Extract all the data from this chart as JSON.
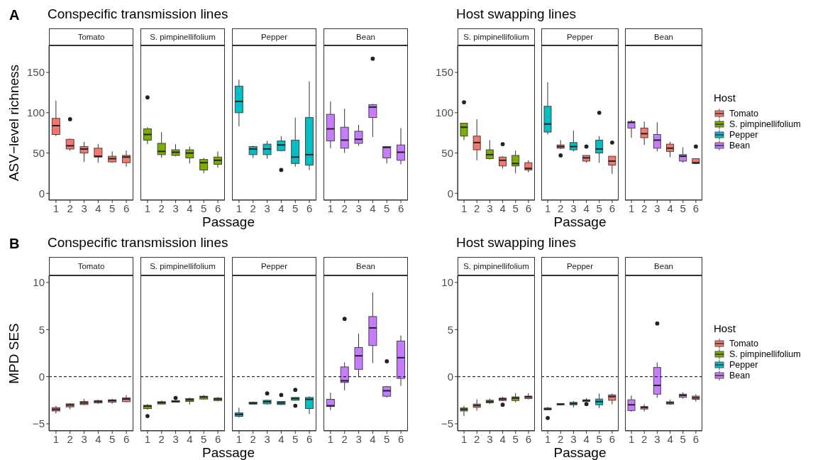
{
  "chart_data": [
    {
      "type": "box",
      "title": "Conspecific transmission lines",
      "annotations": [
        "A"
      ],
      "subtitle": "Tomato",
      "ylabel": "ASV−level richness",
      "xlabel": "Passage",
      "categories": [
        "1",
        "2",
        "3",
        "4",
        "5",
        "6"
      ],
      "ylim": [
        -8.5,
        183.5
      ],
      "yticks": [
        0,
        50,
        100,
        150
      ],
      "series": [
        {
          "color": "#f8766d",
          "boxes": [
            {
              "low": 71,
              "q1": 73,
              "median": 84,
              "q3": 93,
              "high": 115
            },
            {
              "low": 53,
              "q1": 55,
              "median": 59,
              "q3": 67,
              "high": 68,
              "outliers": [
                92
              ]
            },
            {
              "low": 39,
              "q1": 50,
              "median": 55,
              "q3": 58,
              "high": 64
            },
            {
              "low": 38,
              "q1": 45,
              "median": 46,
              "q3": 56,
              "high": 61
            },
            {
              "low": 38,
              "q1": 39,
              "median": 43,
              "q3": 46,
              "high": 52
            },
            {
              "low": 33,
              "q1": 38,
              "median": 45,
              "q3": 47,
              "high": 53
            }
          ]
        }
      ]
    },
    {
      "type": "box",
      "subtitle": "S. pimpinellifolium",
      "tick_labels": "x",
      "categories": [
        "1",
        "2",
        "3",
        "4",
        "5",
        "6"
      ],
      "ylim": [
        -8.5,
        183.5
      ],
      "yticks": [
        0,
        50,
        100,
        150
      ],
      "series": [
        {
          "color": "#7cae00",
          "boxes": [
            {
              "low": 61,
              "q1": 66,
              "median": 73,
              "q3": 80,
              "high": 82,
              "outliers": [
                119
              ]
            },
            {
              "low": 44,
              "q1": 48,
              "median": 52,
              "q3": 62,
              "high": 76
            },
            {
              "low": 46,
              "q1": 47,
              "median": 51,
              "q3": 54,
              "high": 61
            },
            {
              "low": 37,
              "q1": 44,
              "median": 50,
              "q3": 54,
              "high": 58
            },
            {
              "low": 25,
              "q1": 29,
              "median": 38,
              "q3": 42,
              "high": 44
            },
            {
              "low": 32,
              "q1": 36,
              "median": 41,
              "q3": 45,
              "high": 52
            }
          ]
        }
      ]
    },
    {
      "type": "box",
      "subtitle": "Pepper",
      "tick_labels": "x",
      "categories": [
        "1",
        "2",
        "3",
        "4",
        "5",
        "6"
      ],
      "ylim": [
        -8.5,
        183.5
      ],
      "yticks": [
        0,
        50,
        100,
        150
      ],
      "series": [
        {
          "color": "#00bfc4",
          "boxes": [
            {
              "low": 83,
              "q1": 100,
              "median": 114,
              "q3": 133,
              "high": 141
            },
            {
              "low": 44,
              "q1": 48,
              "median": 55,
              "q3": 58,
              "high": 59
            },
            {
              "low": 43,
              "q1": 48,
              "median": 55,
              "q3": 61,
              "high": 65
            },
            {
              "low": 52,
              "q1": 53,
              "median": 60,
              "q3": 65,
              "high": 71,
              "outliers": [
                29
              ]
            },
            {
              "low": 33,
              "q1": 37,
              "median": 45,
              "q3": 66,
              "high": 94
            },
            {
              "low": 29,
              "q1": 35,
              "median": 48,
              "q3": 94,
              "high": 139
            }
          ]
        }
      ]
    },
    {
      "type": "box",
      "subtitle": "Bean",
      "tick_labels": "x",
      "categories": [
        "1",
        "2",
        "3",
        "4",
        "5",
        "6"
      ],
      "ylim": [
        -8.5,
        183.5
      ],
      "yticks": [
        0,
        50,
        100,
        150
      ],
      "series": [
        {
          "color": "#c77cff",
          "boxes": [
            {
              "low": 56,
              "q1": 65,
              "median": 80,
              "q3": 98,
              "high": 114
            },
            {
              "low": 50,
              "q1": 56,
              "median": 66,
              "q3": 82,
              "high": 105
            },
            {
              "low": 59,
              "q1": 62,
              "median": 67,
              "q3": 77,
              "high": 85
            },
            {
              "low": 70,
              "q1": 94,
              "median": 107,
              "q3": 110,
              "high": 111,
              "outliers": [
                167
              ]
            },
            {
              "low": 37,
              "q1": 44,
              "median": 57,
              "q3": 58,
              "high": 58
            },
            {
              "low": 36,
              "q1": 41,
              "median": 51,
              "q3": 60,
              "high": 81
            }
          ]
        }
      ]
    },
    {
      "type": "box",
      "title": "Host swapping lines",
      "subtitle": "S. pimpinellifolium",
      "xlabel": "Passage",
      "categories": [
        "1",
        "2",
        "3",
        "4",
        "5",
        "6"
      ],
      "ylim": [
        -8.5,
        183.5
      ],
      "yticks": [
        0,
        50,
        100,
        150
      ],
      "series": [
        {
          "color": "#7cae00",
          "boxes": [
            {
              "low": 66,
              "q1": 71,
              "median": 82,
              "q3": 87,
              "high": 87,
              "outliers": [
                113
              ]
            },
            null,
            {
              "low": 42,
              "q1": 43,
              "median": 48,
              "q3": 54,
              "high": 66
            },
            null,
            {
              "low": 25,
              "q1": 34,
              "median": 37,
              "q3": 47,
              "high": 53
            },
            null
          ]
        },
        {
          "color": "#f8766d",
          "boxes": [
            null,
            {
              "low": 41,
              "q1": 54,
              "median": 63,
              "q3": 71,
              "high": 92
            },
            null,
            {
              "low": 31,
              "q1": 34,
              "median": 41,
              "q3": 45,
              "high": 46,
              "outliers": [
                61
              ]
            },
            null,
            {
              "low": 26,
              "q1": 29,
              "median": 31,
              "q3": 38,
              "high": 41
            }
          ]
        }
      ]
    },
    {
      "type": "box",
      "subtitle": "Pepper",
      "tick_labels": "x",
      "categories": [
        "1",
        "2",
        "3",
        "4",
        "5",
        "6"
      ],
      "ylim": [
        -8.5,
        183.5
      ],
      "yticks": [
        0,
        50,
        100,
        150
      ],
      "series": [
        {
          "color": "#00bfc4",
          "boxes": [
            {
              "low": 73,
              "q1": 76,
              "median": 86,
              "q3": 108,
              "high": 138
            },
            null,
            {
              "low": 52,
              "q1": 54,
              "median": 58,
              "q3": 63,
              "high": 78
            },
            null,
            {
              "low": 38,
              "q1": 50,
              "median": 55,
              "q3": 66,
              "high": 71,
              "outliers": [
                100
              ]
            },
            null
          ]
        },
        {
          "color": "#f8766d",
          "boxes": [
            null,
            {
              "low": 55,
              "q1": 56,
              "median": 58,
              "q3": 60,
              "high": 66,
              "outliers": [
                47
              ]
            },
            null,
            {
              "low": 38,
              "q1": 40,
              "median": 44,
              "q3": 47,
              "high": 47,
              "outliers": [
                58
              ]
            },
            null,
            {
              "low": 24,
              "q1": 35,
              "median": 40,
              "q3": 46,
              "high": 46,
              "outliers": [
                63
              ]
            }
          ]
        }
      ]
    },
    {
      "type": "box",
      "subtitle": "Bean",
      "tick_labels": "x",
      "legend": "right",
      "legend_title": "Host",
      "categories": [
        "1",
        "2",
        "3",
        "4",
        "5",
        "6"
      ],
      "ylim": [
        -8.5,
        183.5
      ],
      "yticks": [
        0,
        50,
        100,
        150
      ],
      "series": [
        {
          "name": "Tomato",
          "color": "#f8766d",
          "boxes": [
            null,
            {
              "low": 60,
              "q1": 69,
              "median": 74,
              "q3": 81,
              "high": 89
            },
            null,
            {
              "low": 45,
              "q1": 52,
              "median": 56,
              "q3": 61,
              "high": 64
            },
            null,
            {
              "low": 36,
              "q1": 37,
              "median": 38,
              "q3": 43,
              "high": 43,
              "outliers": [
                58
              ]
            }
          ]
        },
        {
          "name": "S. pimpinellifolium",
          "color": "#7cae00",
          "boxes": [
            null,
            null,
            null,
            null,
            null,
            null
          ]
        },
        {
          "name": "Pepper",
          "color": "#00bfc4",
          "boxes": [
            null,
            null,
            null,
            null,
            null,
            null
          ]
        },
        {
          "name": "Bean",
          "color": "#c77cff",
          "boxes": [
            {
              "low": 69,
              "q1": 81,
              "median": 88,
              "q3": 89,
              "high": 91
            },
            null,
            {
              "low": 52,
              "q1": 56,
              "median": 66,
              "q3": 73,
              "high": 88
            },
            null,
            {
              "low": 38,
              "q1": 40,
              "median": 46,
              "q3": 48,
              "high": 57
            },
            null
          ]
        }
      ]
    },
    {
      "type": "box",
      "title": "Conspecific transmission lines",
      "annotations": [
        "B"
      ],
      "subtitle": "Tomato",
      "ylabel": "MPD SES",
      "xlabel": "Passage",
      "categories": [
        "1",
        "2",
        "3",
        "4",
        "5",
        "6"
      ],
      "ylim": [
        -5.75,
        10.75
      ],
      "yticks": [
        -5,
        0,
        5,
        10
      ],
      "ref_lines": [
        {
          "axis": "y",
          "value": 0,
          "line_style": "dashed"
        }
      ],
      "series": [
        {
          "color": "#f8766d",
          "boxes": [
            {
              "low": -3.9,
              "q1": -3.64,
              "median": -3.46,
              "q3": -3.28,
              "high": -3.1
            },
            {
              "low": -3.46,
              "q1": -3.2,
              "median": -3.0,
              "q3": -2.88,
              "high": -2.83
            },
            {
              "low": -3.0,
              "q1": -2.95,
              "median": -2.78,
              "q3": -2.63,
              "high": -2.37
            },
            {
              "low": -2.88,
              "q1": -2.78,
              "median": -2.63,
              "q3": -2.53,
              "high": -2.45
            },
            {
              "low": -2.88,
              "q1": -2.7,
              "median": -2.53,
              "q3": -2.45,
              "high": -2.37
            },
            {
              "low": -2.7,
              "q1": -2.65,
              "median": -2.37,
              "q3": -2.25,
              "high": -1.94
            }
          ]
        }
      ]
    },
    {
      "type": "box",
      "subtitle": "S. pimpinellifolium",
      "tick_labels": "x",
      "categories": [
        "1",
        "2",
        "3",
        "4",
        "5",
        "6"
      ],
      "ylim": [
        -5.75,
        10.75
      ],
      "yticks": [
        -5,
        0,
        5,
        10
      ],
      "ref_lines": [
        {
          "axis": "y",
          "value": 0,
          "line_style": "dashed"
        }
      ],
      "series": [
        {
          "color": "#7cae00",
          "boxes": [
            {
              "low": -3.5,
              "q1": -3.38,
              "median": -3.13,
              "q3": -3.03,
              "high": -2.9,
              "outliers": [
                -4.17
              ]
            },
            {
              "low": -2.95,
              "q1": -2.9,
              "median": -2.75,
              "q3": -2.65,
              "high": -2.53
            },
            {
              "low": -2.72,
              "q1": -2.7,
              "median": -2.63,
              "q3": -2.53,
              "high": -2.5,
              "outliers": [
                -2.25
              ]
            },
            {
              "low": -2.95,
              "q1": -2.63,
              "median": -2.45,
              "q3": -2.32,
              "high": -2.2
            },
            {
              "low": -2.45,
              "q1": -2.37,
              "median": -2.15,
              "q3": -2.07,
              "high": -1.94
            },
            {
              "low": -2.63,
              "q1": -2.53,
              "median": -2.37,
              "q3": -2.27,
              "high": -2.15
            }
          ]
        }
      ]
    },
    {
      "type": "box",
      "subtitle": "Pepper",
      "tick_labels": "x",
      "categories": [
        "1",
        "2",
        "3",
        "4",
        "5",
        "6"
      ],
      "ylim": [
        -5.75,
        10.75
      ],
      "yticks": [
        -5,
        0,
        5,
        10
      ],
      "ref_lines": [
        {
          "axis": "y",
          "value": 0,
          "line_style": "dashed"
        }
      ],
      "series": [
        {
          "color": "#00bfc4",
          "boxes": [
            {
              "low": -4.34,
              "q1": -4.2,
              "median": -4.0,
              "q3": -3.84,
              "high": -3.28
            },
            {
              "low": -2.95,
              "q1": -2.9,
              "median": -2.83,
              "q3": -2.7,
              "high": -2.63
            },
            {
              "low": -2.95,
              "q1": -2.88,
              "median": -2.65,
              "q3": -2.5,
              "high": -2.45,
              "outliers": [
                -1.77
              ]
            },
            {
              "low": -3.0,
              "q1": -2.95,
              "median": -2.78,
              "q3": -2.63,
              "high": -2.58,
              "outliers": [
                -1.94
              ]
            },
            {
              "low": -2.53,
              "q1": -2.5,
              "median": -2.32,
              "q3": -2.2,
              "high": -2.18,
              "outliers": [
                -1.39,
                -3.08
              ]
            },
            {
              "low": -3.96,
              "q1": -3.38,
              "median": -2.4,
              "q3": -2.2,
              "high": -2.07
            }
          ]
        }
      ]
    },
    {
      "type": "box",
      "subtitle": "Bean",
      "tick_labels": "x",
      "categories": [
        "1",
        "2",
        "3",
        "4",
        "5",
        "6"
      ],
      "ylim": [
        -5.75,
        10.75
      ],
      "yticks": [
        -5,
        0,
        5,
        10
      ],
      "ref_lines": [
        {
          "axis": "y",
          "value": 0,
          "line_style": "dashed"
        }
      ],
      "series": [
        {
          "color": "#c77cff",
          "boxes": [
            {
              "low": -3.54,
              "q1": -3.16,
              "median": -3.08,
              "q3": -2.4,
              "high": -1.69
            },
            {
              "low": -1.44,
              "q1": -0.61,
              "median": -0.43,
              "q3": 1.04,
              "high": 1.52,
              "outliers": [
                6.14
              ]
            },
            {
              "low": -0.05,
              "q1": 0.78,
              "median": 2.22,
              "q3": 3.1,
              "high": 4.57
            },
            {
              "low": 1.46,
              "q1": 3.31,
              "median": 5.18,
              "q3": 6.39,
              "high": 8.96
            },
            {
              "low": -2.2,
              "q1": -2.07,
              "median": -1.49,
              "q3": -1.06,
              "high": -0.98,
              "outliers": [
                1.64
              ]
            },
            {
              "low": -0.98,
              "q1": -0.18,
              "median": 2.02,
              "q3": 3.79,
              "high": 4.37
            }
          ]
        }
      ]
    },
    {
      "type": "box",
      "title": "Host swapping lines",
      "subtitle": "S. pimpinellifolium",
      "xlabel": "Passage",
      "categories": [
        "1",
        "2",
        "3",
        "4",
        "5",
        "6"
      ],
      "ylim": [
        -5.75,
        10.75
      ],
      "yticks": [
        -5,
        0,
        5,
        10
      ],
      "ref_lines": [
        {
          "axis": "y",
          "value": 0,
          "line_style": "dashed"
        }
      ],
      "series": [
        {
          "color": "#7cae00",
          "boxes": [
            {
              "low": -4.17,
              "q1": -3.64,
              "median": -3.46,
              "q3": -3.32,
              "high": -3.11
            },
            null,
            {
              "low": -2.9,
              "q1": -2.77,
              "median": -2.64,
              "q3": -2.5,
              "high": -2.32
            },
            null,
            {
              "low": -2.72,
              "q1": -2.53,
              "median": -2.27,
              "q3": -2.14,
              "high": -1.74
            },
            null
          ]
        },
        {
          "color": "#f8766d",
          "boxes": [
            null,
            {
              "low": -3.59,
              "q1": -3.25,
              "median": -3.06,
              "q3": -2.9,
              "high": -2.4
            },
            null,
            {
              "low": -2.59,
              "q1": -2.53,
              "median": -2.37,
              "q3": -2.27,
              "high": -2.14,
              "outliers": [
                -2.98
              ]
            },
            null,
            {
              "low": -2.4,
              "q1": -2.32,
              "median": -2.14,
              "q3": -2.06,
              "high": -1.74
            }
          ]
        }
      ]
    },
    {
      "type": "box",
      "subtitle": "Pepper",
      "tick_labels": "x",
      "categories": [
        "1",
        "2",
        "3",
        "4",
        "5",
        "6"
      ],
      "ylim": [
        -5.75,
        10.75
      ],
      "yticks": [
        -5,
        0,
        5,
        10
      ],
      "ref_lines": [
        {
          "axis": "y",
          "value": 0,
          "line_style": "dashed"
        }
      ],
      "series": [
        {
          "color": "#00bfc4",
          "boxes": [
            {
              "low": -3.56,
              "q1": -3.51,
              "median": -3.43,
              "q3": -3.32,
              "high": -3.19,
              "outliers": [
                -4.38
              ]
            },
            null,
            {
              "low": -3.25,
              "q1": -2.98,
              "median": -2.85,
              "q3": -2.72,
              "high": -2.59
            },
            null,
            {
              "low": -3.32,
              "q1": -2.98,
              "median": -2.64,
              "q3": -2.37,
              "high": -1.79
            },
            null
          ]
        },
        {
          "color": "#f8766d",
          "boxes": [
            null,
            {
              "low": -3.06,
              "q1": -2.98,
              "median": -2.93,
              "q3": -2.85,
              "high": -2.8
            },
            null,
            {
              "low": -2.66,
              "q1": -2.64,
              "median": -2.53,
              "q3": -2.45,
              "high": -2.27,
              "outliers": [
                -2.9
              ]
            },
            null,
            {
              "low": -2.93,
              "q1": -2.5,
              "median": -2.11,
              "q3": -1.93,
              "high": -1.79
            }
          ]
        }
      ]
    },
    {
      "type": "box",
      "subtitle": "Bean",
      "tick_labels": "x",
      "legend": "right",
      "legend_title": "Host",
      "categories": [
        "1",
        "2",
        "3",
        "4",
        "5",
        "6"
      ],
      "ylim": [
        -5.75,
        10.75
      ],
      "yticks": [
        -5,
        0,
        5,
        10
      ],
      "ref_lines": [
        {
          "axis": "y",
          "value": 0,
          "line_style": "dashed"
        }
      ],
      "series": [
        {
          "name": "Tomato",
          "color": "#f8766d",
          "boxes": [
            null,
            {
              "low": -3.69,
              "q1": -3.43,
              "median": -3.25,
              "q3": -3.17,
              "high": -2.93
            },
            null,
            {
              "low": -2.98,
              "q1": -2.9,
              "median": -2.77,
              "q3": -2.66,
              "high": -2.45
            },
            null,
            {
              "low": -2.64,
              "q1": -2.4,
              "median": -2.24,
              "q3": -2.06,
              "high": -1.87
            }
          ]
        },
        {
          "name": "S. pimpinellifolium",
          "color": "#7cae00",
          "boxes": [
            null,
            null,
            null,
            null,
            null,
            null
          ]
        },
        {
          "name": "Pepper",
          "color": "#00bfc4",
          "boxes": [
            null,
            null,
            null,
            null,
            null,
            null
          ]
        },
        {
          "name": "Bean",
          "color": "#c77cff",
          "boxes": [
            {
              "low": -3.72,
              "q1": -3.59,
              "median": -2.98,
              "q3": -2.45,
              "high": -2.0
            },
            null,
            {
              "low": -2.24,
              "q1": -1.85,
              "median": -0.92,
              "q3": 0.98,
              "high": 1.5,
              "outliers": [
                5.65
              ]
            },
            null,
            {
              "low": -2.32,
              "q1": -2.19,
              "median": -1.98,
              "q3": -1.85,
              "high": -1.66
            },
            null
          ]
        }
      ]
    }
  ]
}
